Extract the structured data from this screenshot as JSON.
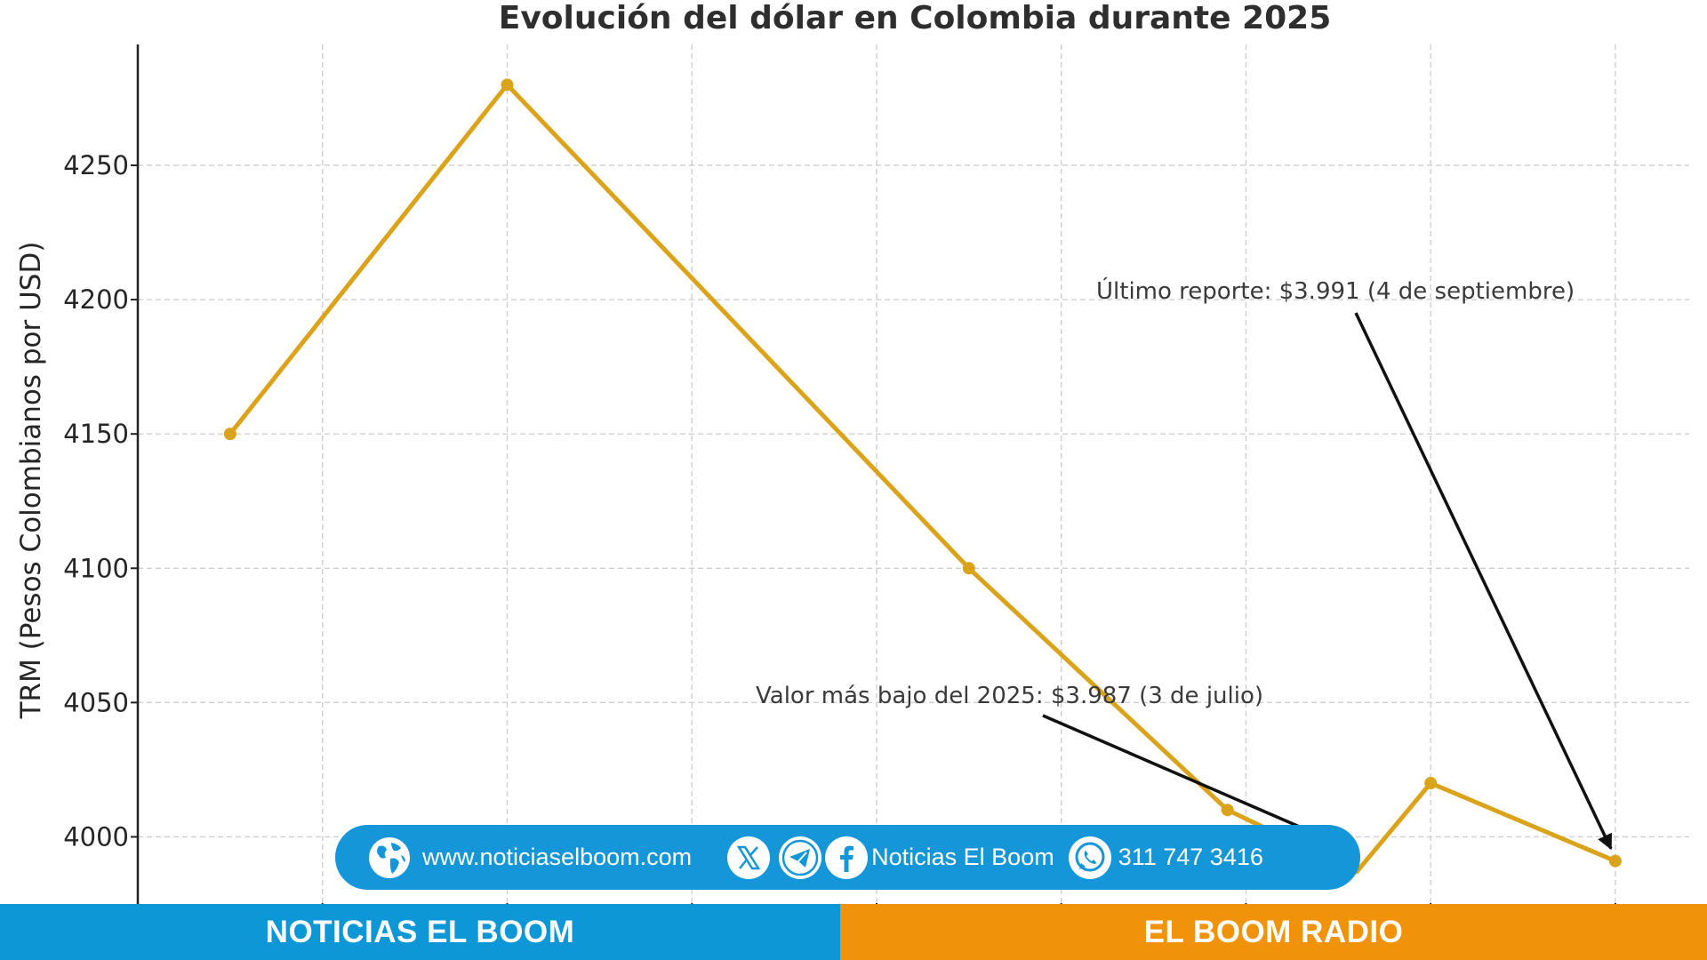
{
  "chart_data": {
    "type": "line",
    "title": "Evolución del dólar en Colombia durante 2025",
    "xlabel": "",
    "ylabel": "TRM (Pesos Colombianos por USD)",
    "x": [
      0.5,
      2,
      4.5,
      5.9,
      6.6,
      7,
      8
    ],
    "y": [
      4150,
      4280,
      4100,
      4010,
      3987,
      4020,
      3991
    ],
    "xlim": [
      0,
      8.4
    ],
    "ylim": [
      3975,
      4295
    ],
    "yticks": [
      4000,
      4050,
      4100,
      4150,
      4200,
      4250
    ],
    "grid": true,
    "line_color": "#dba31a",
    "annotations": [
      {
        "text": "Último reporte: $3.991 (4 de septiembre)",
        "target": {
          "x": 8,
          "y": 3991
        }
      },
      {
        "text": "Valor más bajo del 2025: $3.987 (3 de julio)",
        "target": {
          "x": 6.6,
          "y": 3987
        }
      }
    ]
  },
  "footer": {
    "website": "www.noticiaselboom.com",
    "social_name": "Noticias El Boom",
    "phone": "311 747 3416",
    "left_band": "NOTICIAS EL BOOM",
    "right_band": "EL BOOM RADIO",
    "pill_color": "#1496d8",
    "left_band_color": "#0d97d6",
    "right_band_color": "#f0930a",
    "icons": [
      "globe-icon",
      "x-icon",
      "telegram-icon",
      "facebook-icon",
      "whatsapp-icon"
    ]
  }
}
